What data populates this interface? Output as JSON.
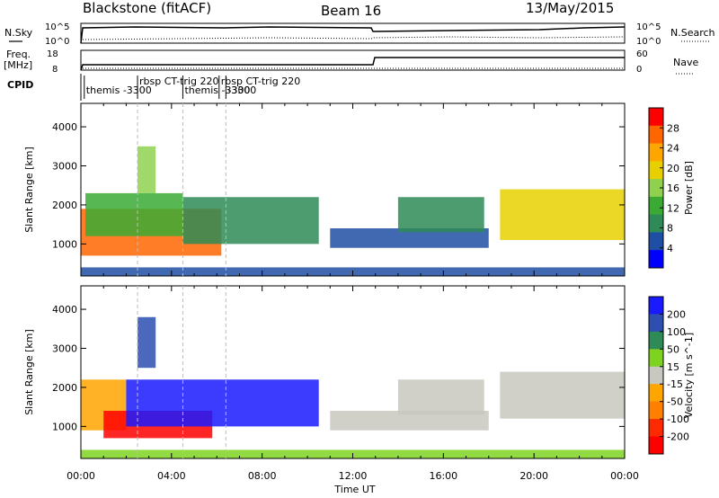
{
  "header": {
    "station": "Blackstone (fitACF)",
    "beam": "Beam 16",
    "date": "13/May/2015"
  },
  "left_labels": {
    "nsky": "N.Sky",
    "freq_line1": "Freq.",
    "freq_line2": "[MHz]",
    "cpid": "CPID"
  },
  "right_labels": {
    "nsearch": "N.Search",
    "nave": "Nave"
  },
  "noise_axis": {
    "left_ticks": [
      "10^5",
      "10^0"
    ],
    "right_ticks": [
      "10^5",
      "10^0"
    ]
  },
  "freq_axis": {
    "left_ticks": [
      "18",
      "8"
    ],
    "right_ticks": [
      "60",
      "0"
    ]
  },
  "cpid_labels": [
    {
      "text": "themis -3300",
      "start_hour": 0.15,
      "row": 2
    },
    {
      "text": "rbsp CT-trig 220",
      "start_hour": 2.5,
      "row": 1
    },
    {
      "text": "themis -3300",
      "start_hour": 4.5,
      "row": 2
    },
    {
      "text": "rbsp CT-trig 220",
      "start_hour": 6.1,
      "row": 1
    },
    {
      "text": "-3300",
      "start_hour": 6.4,
      "row": 2
    }
  ],
  "colorbars": {
    "power": {
      "label": "Power [dB]",
      "ticks": [
        "28",
        "24",
        "20",
        "16",
        "12",
        "8",
        "4"
      ],
      "colors": [
        "#ff0000",
        "#ff6600",
        "#ffa500",
        "#e8d000",
        "#8fd14f",
        "#3aaa35",
        "#2e8b57",
        "#1f4fa5",
        "#0000ff"
      ]
    },
    "velocity": {
      "label": "Velocity [m s^-1]",
      "ticks": [
        "200",
        "100",
        "50",
        "15",
        "-15",
        "-50",
        "-100",
        "-200"
      ],
      "colors": [
        "#1a1aff",
        "#2c4fb0",
        "#2e8b57",
        "#7ed321",
        "#c8c8c0",
        "#ffa500",
        "#ff7f00",
        "#ff2a00",
        "#ff0000"
      ]
    }
  },
  "chart_data": [
    {
      "type": "heatmap",
      "title": "Power",
      "ylabel": "Slant Range [km]",
      "xlabel": "",
      "x_ticks": [
        "00:00",
        "04:00",
        "08:00",
        "12:00",
        "16:00",
        "20:00",
        "00:00"
      ],
      "y_ticks": [
        "1000",
        "2000",
        "3000",
        "4000"
      ],
      "xlim_hours": [
        0,
        24
      ],
      "ylim_km": [
        180,
        4600
      ],
      "colorbar_range_db": [
        0,
        32
      ],
      "regions": [
        {
          "t0": 0.0,
          "t1": 6.2,
          "r0": 700,
          "r1": 1900,
          "level": 28
        },
        {
          "t0": 0.2,
          "t1": 4.5,
          "r0": 1200,
          "r1": 2300,
          "level": 14
        },
        {
          "t0": 2.5,
          "t1": 3.3,
          "r0": 2300,
          "r1": 3500,
          "level": 18
        },
        {
          "t0": 4.5,
          "t1": 10.5,
          "r0": 1000,
          "r1": 2200,
          "level": 8
        },
        {
          "t0": 11.0,
          "t1": 18.0,
          "r0": 900,
          "r1": 1400,
          "level": 6
        },
        {
          "t0": 14.0,
          "t1": 17.8,
          "r0": 1300,
          "r1": 2200,
          "level": 10
        },
        {
          "t0": 18.5,
          "t1": 24.0,
          "r0": 1100,
          "r1": 2400,
          "level": 20
        },
        {
          "t0": 0.0,
          "t1": 24.0,
          "r0": 180,
          "r1": 400,
          "level": 6
        }
      ]
    },
    {
      "type": "heatmap",
      "title": "Velocity",
      "ylabel": "Slant Range [km]",
      "xlabel": "Time UT",
      "x_ticks": [
        "00:00",
        "04:00",
        "08:00",
        "12:00",
        "16:00",
        "20:00",
        "00:00"
      ],
      "y_ticks": [
        "1000",
        "2000",
        "3000",
        "4000"
      ],
      "xlim_hours": [
        0,
        24
      ],
      "ylim_km": [
        180,
        4600
      ],
      "colorbar_range_ms": [
        -200,
        200
      ],
      "regions": [
        {
          "t0": 0.0,
          "t1": 2.0,
          "r0": 900,
          "r1": 2200,
          "level": -60
        },
        {
          "t0": 1.0,
          "t1": 5.8,
          "r0": 700,
          "r1": 1400,
          "level": -200
        },
        {
          "t0": 2.0,
          "t1": 10.5,
          "r0": 1000,
          "r1": 2200,
          "level": 200
        },
        {
          "t0": 2.5,
          "t1": 3.3,
          "r0": 2500,
          "r1": 3800,
          "level": 150
        },
        {
          "t0": 11.0,
          "t1": 18.0,
          "r0": 900,
          "r1": 1400,
          "level": 0
        },
        {
          "t0": 14.0,
          "t1": 17.8,
          "r0": 1300,
          "r1": 2200,
          "level": 0
        },
        {
          "t0": 18.5,
          "t1": 24.0,
          "r0": 1200,
          "r1": 2400,
          "level": 0
        },
        {
          "t0": 0.0,
          "t1": 24.0,
          "r0": 180,
          "r1": 400,
          "level": 60
        }
      ]
    }
  ]
}
